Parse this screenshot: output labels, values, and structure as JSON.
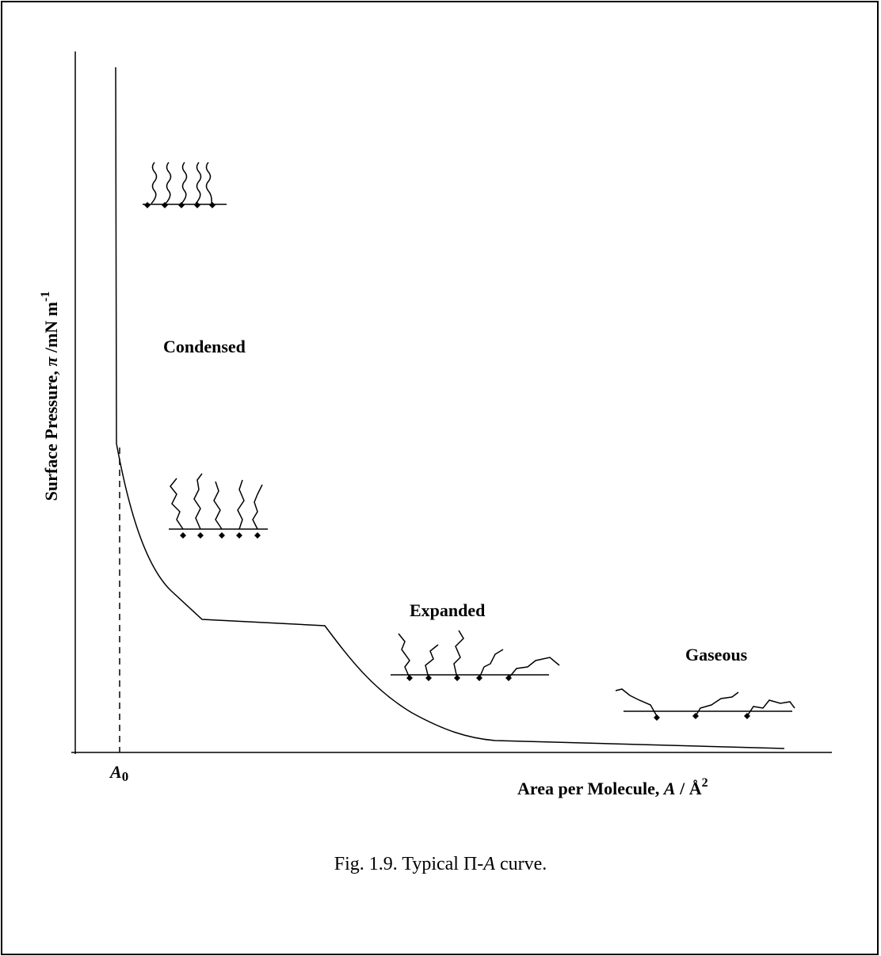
{
  "axes": {
    "y_label": {
      "text": "Surface Pressure, ",
      "symbol": "π",
      "unit": " /mN m",
      "exponent": "-1"
    },
    "x_label": {
      "text": "Area per Molecule, ",
      "symbol": "A",
      "unit": " / Å",
      "exponent": "2"
    },
    "origin_label": {
      "symbol": "A",
      "subscript": "0"
    }
  },
  "phases": [
    "Condensed",
    "Expanded",
    "Gaseous"
  ],
  "caption": {
    "text": "Fig. 1.9. Typical Π-",
    "symbol": "A",
    "suffix": " curve."
  }
}
